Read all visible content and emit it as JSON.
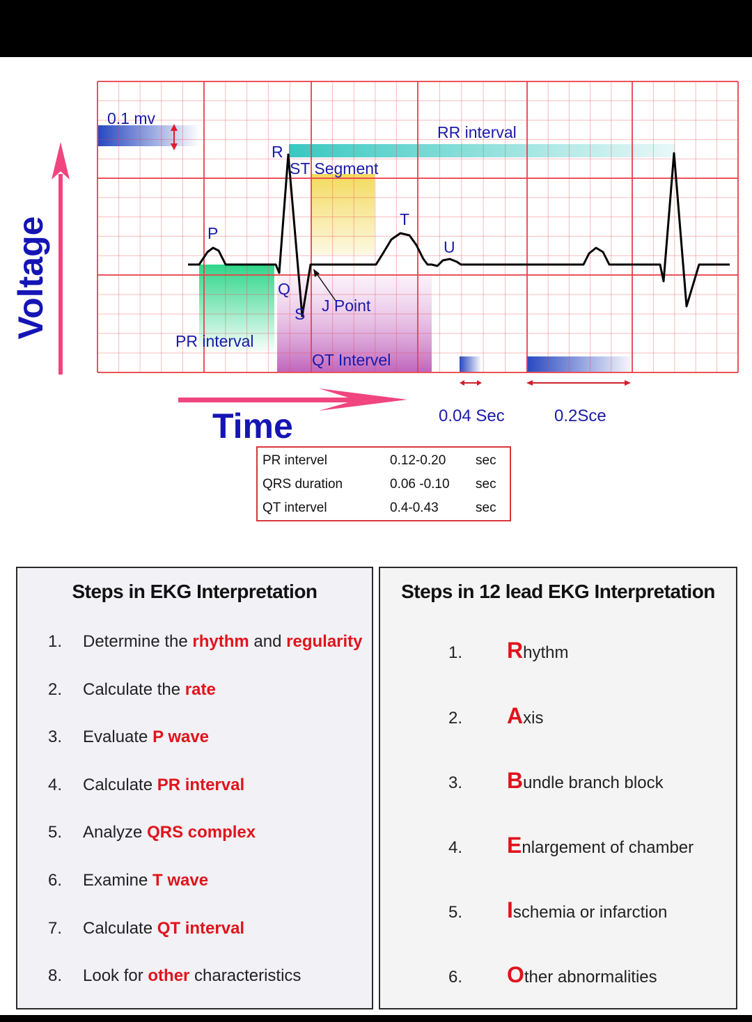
{
  "diagram": {
    "scale_label": "0.1  mv",
    "rr_label": "RR  interval",
    "st_label": "ST  Segment",
    "pr_label": "PR  interval",
    "qt_label": "QT  Intervel",
    "j_label": "J  Point",
    "wave_labels": {
      "p": "P",
      "q": "Q",
      "r": "R",
      "s": "S",
      "t": "T",
      "u": "U"
    },
    "small_box_label": "0.04  Sec",
    "large_box_label": "0.2Sce",
    "voltage_axis": "Voltage",
    "time_axis": "Time",
    "colors": {
      "grid": "#e9404a",
      "axis_arrow": "#f0457e",
      "label_blue": "#1a1aa8",
      "pr_fill": "#2fd68a",
      "qt_fill": "#b955b5",
      "st_fill": "#f2d64a",
      "rr_fill": "#38c8c0"
    }
  },
  "normal_values": [
    {
      "name": "PR  intervel",
      "range": "0.12-0.20",
      "unit": "sec"
    },
    {
      "name": "QRS  duration",
      "range": "0.06 -0.10",
      "unit": "sec"
    },
    {
      "name": "QT  intervel",
      "range": "0.4-0.43",
      "unit": "sec"
    }
  ],
  "steps_panel": {
    "title": "Steps in EKG Interpretation",
    "items": [
      {
        "num": "1.",
        "pre": "Determine the ",
        "hl1": "rhythm",
        "mid": " and ",
        "hl2": "regularity",
        "post": ""
      },
      {
        "num": "2.",
        "pre": "Calculate the ",
        "hl1": "rate",
        "mid": "",
        "hl2": "",
        "post": ""
      },
      {
        "num": "3.",
        "pre": "Evaluate ",
        "hl1": "P wave",
        "mid": "",
        "hl2": "",
        "post": ""
      },
      {
        "num": "4.",
        "pre": "Calculate ",
        "hl1": "PR interval",
        "mid": "",
        "hl2": "",
        "post": ""
      },
      {
        "num": "5.",
        "pre": "Analyze ",
        "hl1": "QRS complex",
        "mid": "",
        "hl2": "",
        "post": ""
      },
      {
        "num": "6.",
        "pre": "Examine ",
        "hl1": "T wave",
        "mid": "",
        "hl2": "",
        "post": ""
      },
      {
        "num": "7.",
        "pre": "Calculate ",
        "hl1": "QT interval",
        "mid": "",
        "hl2": "",
        "post": ""
      },
      {
        "num": "8.",
        "pre": "Look for ",
        "hl1": "other",
        "mid": " characteristics",
        "hl2": "",
        "post": ""
      }
    ]
  },
  "lead12_panel": {
    "title": "Steps in 12 lead EKG Interpretation",
    "items": [
      {
        "num": "1.",
        "initial": "R",
        "rest": "hythm"
      },
      {
        "num": "2.",
        "initial": "A",
        "rest": "xis"
      },
      {
        "num": "3.",
        "initial": "B",
        "rest": "undle branch block"
      },
      {
        "num": "4.",
        "initial": "E",
        "rest": "nlargement of chamber"
      },
      {
        "num": "5.",
        "initial": "I",
        "rest": "schemia or infarction"
      },
      {
        "num": "6.",
        "initial": "O",
        "rest": "ther abnormalities"
      }
    ]
  }
}
